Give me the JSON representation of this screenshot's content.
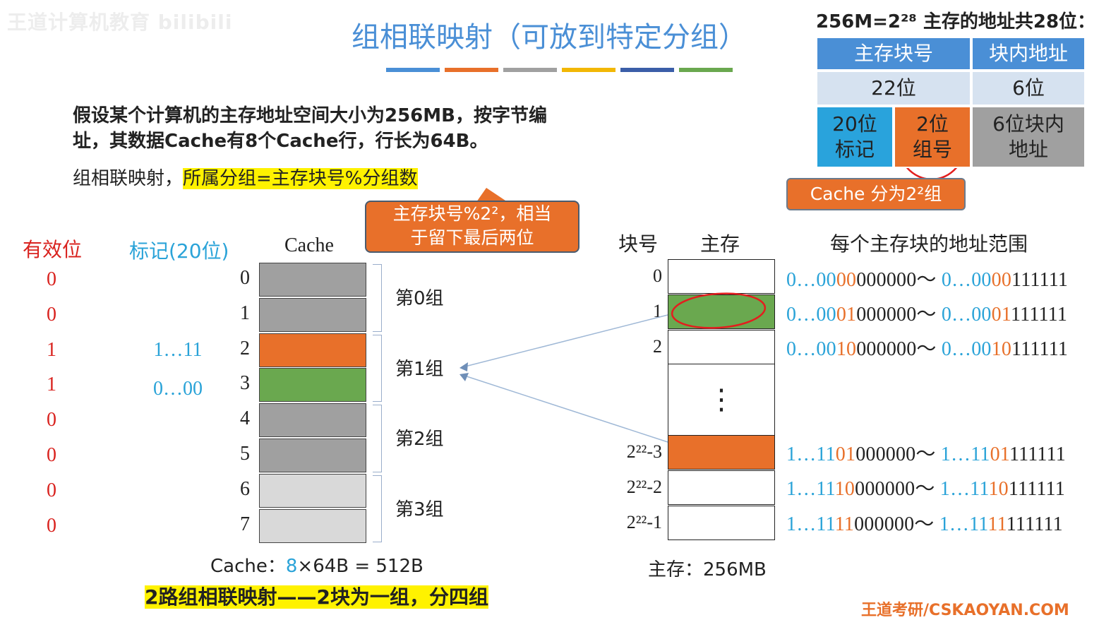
{
  "watermark": "王道计算机教育 bilibili",
  "title": "组相联映射（可放到特定分组）",
  "title_bar_colors": [
    "#4a8fd6",
    "#e8702a",
    "#a0a0a0",
    "#f2b705",
    "#3b5ea8",
    "#6aa84f"
  ],
  "problem": {
    "line1": "假设某个计算机的主存地址空间大小为256MB，按字节编",
    "line2": "址，其数据Cache有8个Cache行，行长为64B。",
    "mapping_prefix": "组相联映射，",
    "mapping_highlight": "所属分组=主存块号%分组数"
  },
  "callout": {
    "line1": "主存块号%2²，相当",
    "line2": "于留下最后两位"
  },
  "cache": {
    "valid_header": "有效位",
    "tag_header": "标记(20位)",
    "cache_header": "Cache",
    "lines": [
      {
        "index": "0",
        "valid": "0",
        "tag": "",
        "color": "#a0a0a0"
      },
      {
        "index": "1",
        "valid": "0",
        "tag": "",
        "color": "#a0a0a0"
      },
      {
        "index": "2",
        "valid": "1",
        "tag": "1…11",
        "color": "#e8702a"
      },
      {
        "index": "3",
        "valid": "1",
        "tag": "0…00",
        "color": "#6aa84f"
      },
      {
        "index": "4",
        "valid": "0",
        "tag": "",
        "color": "#a0a0a0"
      },
      {
        "index": "5",
        "valid": "0",
        "tag": "",
        "color": "#a0a0a0"
      },
      {
        "index": "6",
        "valid": "0",
        "tag": "",
        "color": "#d9d9d9"
      },
      {
        "index": "7",
        "valid": "0",
        "tag": "",
        "color": "#d9d9d9"
      }
    ],
    "groups": [
      "第0组",
      "第1组",
      "第2组",
      "第3组"
    ],
    "size_label": "Cache：",
    "size_count": "8",
    "size_rest": "×64B = 512B",
    "summary": "2路组相联映射——2块为一组，分四组"
  },
  "memory": {
    "block_header": "块号",
    "mem_header": "主存",
    "range_header": "每个主存块的地址范围",
    "ellipsis": "⋮",
    "size_label": "主存：256MB",
    "blocks": [
      {
        "index": "0",
        "color": "#ffffff",
        "a1": "0…",
        "a2": "00",
        "a3": "00",
        "a4": "000000～ ",
        "b1": "0…",
        "b2": "00",
        "b3": "00",
        "b4": "111111"
      },
      {
        "index": "1",
        "color": "#6aa84f",
        "a1": "0…",
        "a2": "00",
        "a3": "01",
        "a4": "000000～ ",
        "b1": "0…",
        "b2": "00",
        "b3": "01",
        "b4": "111111"
      },
      {
        "index": "2",
        "color": "#ffffff",
        "a1": "0…",
        "a2": "00",
        "a3": "10",
        "a4": "000000～ ",
        "b1": "0…",
        "b2": "00",
        "b3": "10",
        "b4": "111111"
      },
      {
        "index": "2²²-3",
        "color": "#e8702a",
        "a1": "1…",
        "a2": "11",
        "a3": "01",
        "a4": "000000～ ",
        "b1": "1…",
        "b2": "11",
        "b3": "01",
        "b4": "111111"
      },
      {
        "index": "2²²-2",
        "color": "#ffffff",
        "a1": "1…",
        "a2": "11",
        "a3": "10",
        "a4": "000000～ ",
        "b1": "1…",
        "b2": "11",
        "b3": "10",
        "b4": "111111"
      },
      {
        "index": "2²²-1",
        "color": "#ffffff",
        "a1": "1…",
        "a2": "11",
        "a3": "11",
        "a4": "000000～ ",
        "b1": "1…",
        "b2": "11",
        "b3": "11",
        "b4": "111111"
      }
    ]
  },
  "address_table": {
    "caption": "256M=2²⁸ 主存的地址共28位：",
    "header_block": "主存块号",
    "header_offset": "块内地址",
    "bits_block": "22位",
    "bits_offset": "6位",
    "tag_line1": "20位",
    "tag_line2": "标记",
    "group_line1": "2位",
    "group_line2": "组号",
    "offset_line1": "6位块内",
    "offset_line2": "地址",
    "note": "Cache 分为2²组",
    "colors": {
      "header": "#4a8fd6",
      "light": "#d6e2f0",
      "tag": "#29a3dc",
      "group": "#e8702a",
      "offset": "#a0a0a0"
    }
  },
  "footer": "王道考研/CSKAOYAN.COM"
}
